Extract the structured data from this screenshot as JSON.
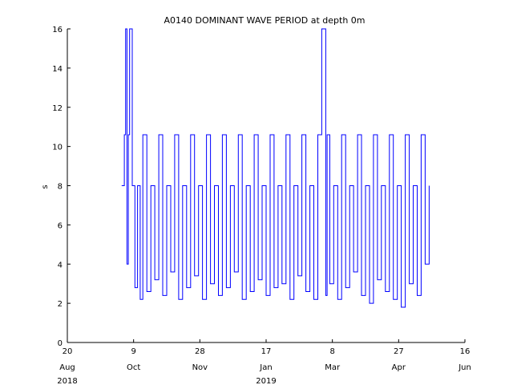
{
  "chart_data": {
    "type": "line",
    "title": "A0140 DOMINANT WAVE PERIOD at depth 0m",
    "xlabel": "",
    "ylabel": "s",
    "ylim": [
      0,
      16
    ],
    "yticks": [
      0,
      2,
      4,
      6,
      8,
      10,
      12,
      14,
      16
    ],
    "xlim": [
      "2018-08-20",
      "2019-06-16"
    ],
    "xticks": [
      {
        "date": "2018-08-20",
        "day": "20",
        "month": "Aug",
        "year": "2018"
      },
      {
        "date": "2018-10-09",
        "day": "9",
        "month": "Oct",
        "year": ""
      },
      {
        "date": "2018-11-28",
        "day": "28",
        "month": "Nov",
        "year": ""
      },
      {
        "date": "2019-01-17",
        "day": "17",
        "month": "Jan",
        "year": "2019"
      },
      {
        "date": "2019-03-08",
        "day": "8",
        "month": "Mar",
        "year": ""
      },
      {
        "date": "2019-04-27",
        "day": "27",
        "month": "Apr",
        "year": ""
      },
      {
        "date": "2019-06-16",
        "day": "16",
        "month": "Jun",
        "year": ""
      }
    ],
    "grid": false,
    "series": [
      {
        "color": "#0000ff",
        "x": [
          "2018-09-30",
          "2018-10-02",
          "2018-10-03",
          "2018-10-04",
          "2018-10-05",
          "2018-10-06",
          "2018-10-08",
          "2018-10-10",
          "2018-10-12",
          "2018-10-14",
          "2018-10-16",
          "2018-10-19",
          "2018-10-22",
          "2018-10-25",
          "2018-10-28",
          "2018-10-31",
          "2018-11-03",
          "2018-11-06",
          "2018-11-09",
          "2018-11-12",
          "2018-11-15",
          "2018-11-18",
          "2018-11-21",
          "2018-11-24",
          "2018-11-27",
          "2018-11-30",
          "2018-12-03",
          "2018-12-06",
          "2018-12-09",
          "2018-12-12",
          "2018-12-15",
          "2018-12-18",
          "2018-12-21",
          "2018-12-24",
          "2018-12-27",
          "2018-12-30",
          "2019-01-02",
          "2019-01-05",
          "2019-01-08",
          "2019-01-11",
          "2019-01-14",
          "2019-01-17",
          "2019-01-20",
          "2019-01-23",
          "2019-01-26",
          "2019-01-29",
          "2019-02-01",
          "2019-02-04",
          "2019-02-07",
          "2019-02-10",
          "2019-02-13",
          "2019-02-16",
          "2019-02-19",
          "2019-02-22",
          "2019-02-25",
          "2019-02-28",
          "2019-03-03",
          "2019-03-04",
          "2019-03-06",
          "2019-03-09",
          "2019-03-12",
          "2019-03-15",
          "2019-03-18",
          "2019-03-21",
          "2019-03-24",
          "2019-03-27",
          "2019-03-30",
          "2019-04-02",
          "2019-04-05",
          "2019-04-08",
          "2019-04-11",
          "2019-04-14",
          "2019-04-17",
          "2019-04-20",
          "2019-04-23",
          "2019-04-26",
          "2019-04-29",
          "2019-05-02",
          "2019-05-05",
          "2019-05-08",
          "2019-05-11",
          "2019-05-14",
          "2019-05-17",
          "2019-05-20"
        ],
        "y": [
          8.0,
          10.6,
          16.0,
          4.0,
          10.6,
          16.0,
          8.0,
          2.8,
          8.0,
          2.2,
          10.6,
          2.6,
          8.0,
          3.2,
          10.6,
          2.4,
          8.0,
          3.6,
          10.6,
          2.2,
          8.0,
          2.8,
          10.6,
          3.4,
          8.0,
          2.2,
          10.6,
          3.0,
          8.0,
          2.4,
          10.6,
          2.8,
          8.0,
          3.6,
          10.6,
          2.2,
          8.0,
          2.6,
          10.6,
          3.2,
          8.0,
          2.4,
          10.6,
          2.8,
          8.0,
          3.0,
          10.6,
          2.2,
          8.0,
          3.4,
          10.6,
          2.6,
          8.0,
          2.2,
          10.6,
          16.0,
          2.4,
          10.6,
          3.0,
          8.0,
          2.2,
          10.6,
          2.8,
          8.0,
          3.6,
          10.6,
          2.4,
          8.0,
          2.0,
          10.6,
          3.2,
          8.0,
          2.6,
          10.6,
          2.2,
          8.0,
          1.8,
          10.6,
          3.0,
          8.0,
          2.4,
          10.6,
          4.0,
          8.0
        ]
      }
    ]
  }
}
